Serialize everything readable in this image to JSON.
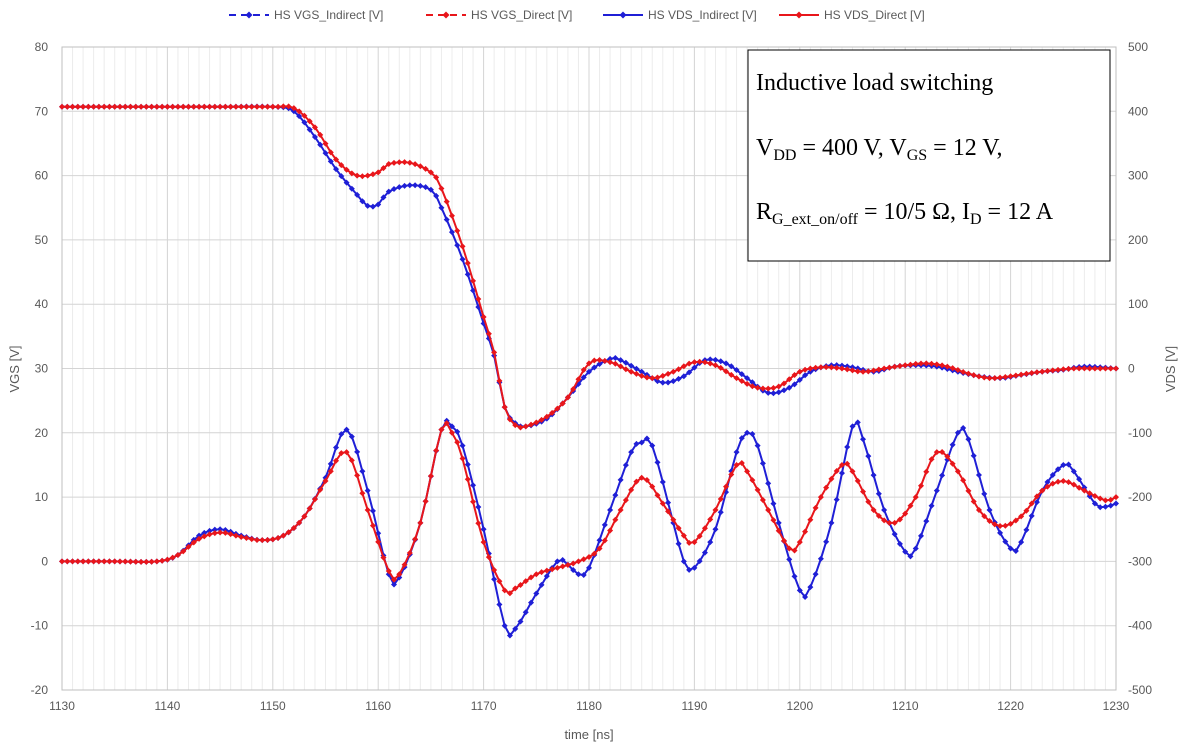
{
  "chart_data": {
    "type": "line",
    "xlabel": "time [ns]",
    "ylabel_left": "VGS [V]",
    "ylabel_right": "VDS [V]",
    "xlim": [
      1130,
      1230
    ],
    "ylim_left": [
      -20,
      80
    ],
    "ylim_right": [
      -500,
      500
    ],
    "x_ticks": [
      1130,
      1140,
      1150,
      1160,
      1170,
      1180,
      1190,
      1200,
      1210,
      1220,
      1230
    ],
    "y_left_ticks": [
      -20,
      -10,
      0,
      10,
      20,
      30,
      40,
      50,
      60,
      70,
      80
    ],
    "y_right_ticks": [
      -500,
      -400,
      -300,
      -200,
      -100,
      0,
      100,
      200,
      300,
      400,
      500
    ],
    "grid": true,
    "legend_position": "top",
    "series": [
      {
        "name": "HS VGS_Indirect [V]",
        "axis": "left",
        "style": "dashed",
        "color": "#1f1fd6",
        "points": [
          [
            1130,
            0
          ],
          [
            1135,
            0
          ],
          [
            1139,
            0
          ],
          [
            1141,
            1
          ],
          [
            1143,
            4
          ],
          [
            1145,
            5
          ],
          [
            1147,
            4
          ],
          [
            1149,
            3.3
          ],
          [
            1151,
            4
          ],
          [
            1153,
            7
          ],
          [
            1155,
            13
          ],
          [
            1157,
            20.5
          ],
          [
            1159,
            11
          ],
          [
            1161,
            -2
          ],
          [
            1162,
            -2.5
          ],
          [
            1164,
            6
          ],
          [
            1166,
            20.5
          ],
          [
            1167,
            21
          ],
          [
            1168,
            18
          ],
          [
            1170,
            5
          ],
          [
            1172,
            -10
          ],
          [
            1173,
            -10.5
          ],
          [
            1175,
            -5
          ],
          [
            1177,
            0
          ],
          [
            1178,
            -0.5
          ],
          [
            1179,
            -2
          ],
          [
            1180,
            -1
          ],
          [
            1182,
            8
          ],
          [
            1184,
            17
          ],
          [
            1185,
            18.5
          ],
          [
            1186,
            18
          ],
          [
            1188,
            6
          ],
          [
            1189,
            0
          ],
          [
            1190,
            -1
          ],
          [
            1192,
            5
          ],
          [
            1194,
            17
          ],
          [
            1195,
            20
          ],
          [
            1196,
            18
          ],
          [
            1198,
            6
          ],
          [
            1200,
            -4.5
          ],
          [
            1201,
            -4
          ],
          [
            1203,
            6
          ],
          [
            1205,
            21
          ],
          [
            1206,
            19
          ],
          [
            1208,
            8
          ],
          [
            1210,
            1.5
          ],
          [
            1211,
            2
          ],
          [
            1213,
            11
          ],
          [
            1215,
            20
          ],
          [
            1216,
            19
          ],
          [
            1218,
            8
          ],
          [
            1220,
            2
          ],
          [
            1221,
            3
          ],
          [
            1223,
            11
          ],
          [
            1225,
            15
          ],
          [
            1226,
            14
          ],
          [
            1228,
            9
          ],
          [
            1229,
            8.5
          ],
          [
            1230,
            9
          ]
        ]
      },
      {
        "name": "HS VGS_Direct [V]",
        "axis": "left",
        "style": "dashed",
        "color": "#e8161b",
        "points": [
          [
            1130,
            0
          ],
          [
            1135,
            0
          ],
          [
            1139,
            0
          ],
          [
            1141,
            1
          ],
          [
            1143,
            3.5
          ],
          [
            1145,
            4.5
          ],
          [
            1147,
            3.8
          ],
          [
            1149,
            3.3
          ],
          [
            1151,
            4
          ],
          [
            1153,
            7
          ],
          [
            1155,
            12.5
          ],
          [
            1157,
            17
          ],
          [
            1159,
            8
          ],
          [
            1161,
            -1.5
          ],
          [
            1162,
            -2
          ],
          [
            1164,
            6
          ],
          [
            1166,
            20.5
          ],
          [
            1167,
            20
          ],
          [
            1168,
            16
          ],
          [
            1170,
            3
          ],
          [
            1172,
            -4.5
          ],
          [
            1173,
            -4.2
          ],
          [
            1175,
            -2
          ],
          [
            1177,
            -1
          ],
          [
            1179,
            0
          ],
          [
            1181,
            2
          ],
          [
            1183,
            8
          ],
          [
            1185,
            13
          ],
          [
            1187,
            9
          ],
          [
            1189,
            4
          ],
          [
            1190,
            3
          ],
          [
            1192,
            8
          ],
          [
            1194,
            15
          ],
          [
            1195,
            14
          ],
          [
            1197,
            8
          ],
          [
            1199,
            2
          ],
          [
            1200,
            3
          ],
          [
            1202,
            10
          ],
          [
            1204,
            15
          ],
          [
            1205,
            14
          ],
          [
            1207,
            8
          ],
          [
            1209,
            6
          ],
          [
            1211,
            10
          ],
          [
            1213,
            17
          ],
          [
            1215,
            14
          ],
          [
            1217,
            8
          ],
          [
            1219,
            5.5
          ],
          [
            1221,
            7
          ],
          [
            1223,
            11
          ],
          [
            1225,
            12.5
          ],
          [
            1227,
            11
          ],
          [
            1229,
            9.5
          ],
          [
            1230,
            10
          ]
        ]
      },
      {
        "name": "HS VDS_Indirect [V]",
        "axis": "right",
        "style": "solid",
        "color": "#1f1fd6",
        "points": [
          [
            1130,
            407
          ],
          [
            1135,
            407
          ],
          [
            1140,
            407
          ],
          [
            1145,
            407
          ],
          [
            1150,
            407
          ],
          [
            1152,
            400
          ],
          [
            1154,
            360
          ],
          [
            1156,
            310
          ],
          [
            1158,
            270
          ],
          [
            1159,
            253
          ],
          [
            1160,
            255
          ],
          [
            1161,
            275
          ],
          [
            1163,
            285
          ],
          [
            1165,
            278
          ],
          [
            1166,
            250
          ],
          [
            1168,
            170
          ],
          [
            1170,
            70
          ],
          [
            1171,
            20
          ],
          [
            1172,
            -60
          ],
          [
            1173,
            -85
          ],
          [
            1174,
            -90
          ],
          [
            1176,
            -78
          ],
          [
            1178,
            -45
          ],
          [
            1180,
            -5
          ],
          [
            1182,
            15
          ],
          [
            1183,
            13
          ],
          [
            1185,
            -5
          ],
          [
            1187,
            -22
          ],
          [
            1189,
            -12
          ],
          [
            1191,
            13
          ],
          [
            1193,
            8
          ],
          [
            1195,
            -15
          ],
          [
            1197,
            -38
          ],
          [
            1199,
            -30
          ],
          [
            1201,
            -5
          ],
          [
            1203,
            5
          ],
          [
            1205,
            2
          ],
          [
            1207,
            -5
          ],
          [
            1209,
            3
          ],
          [
            1211,
            5
          ],
          [
            1213,
            3
          ],
          [
            1215,
            -5
          ],
          [
            1217,
            -12
          ],
          [
            1219,
            -15
          ],
          [
            1221,
            -10
          ],
          [
            1223,
            -5
          ],
          [
            1225,
            -2
          ],
          [
            1227,
            3
          ],
          [
            1230,
            0
          ]
        ]
      },
      {
        "name": "HS VDS_Direct [V]",
        "axis": "right",
        "style": "solid",
        "color": "#e8161b",
        "points": [
          [
            1130,
            407
          ],
          [
            1135,
            407
          ],
          [
            1140,
            407
          ],
          [
            1145,
            407
          ],
          [
            1150,
            407
          ],
          [
            1152,
            405
          ],
          [
            1154,
            375
          ],
          [
            1156,
            325
          ],
          [
            1158,
            300
          ],
          [
            1160,
            305
          ],
          [
            1161,
            318
          ],
          [
            1163,
            320
          ],
          [
            1165,
            305
          ],
          [
            1166,
            280
          ],
          [
            1168,
            190
          ],
          [
            1170,
            80
          ],
          [
            1171,
            25
          ],
          [
            1172,
            -60
          ],
          [
            1173,
            -88
          ],
          [
            1174,
            -90
          ],
          [
            1176,
            -75
          ],
          [
            1178,
            -45
          ],
          [
            1180,
            8
          ],
          [
            1182,
            10
          ],
          [
            1184,
            -5
          ],
          [
            1186,
            -15
          ],
          [
            1188,
            -5
          ],
          [
            1190,
            10
          ],
          [
            1192,
            5
          ],
          [
            1194,
            -15
          ],
          [
            1196,
            -30
          ],
          [
            1198,
            -28
          ],
          [
            1200,
            -5
          ],
          [
            1202,
            2
          ],
          [
            1204,
            0
          ],
          [
            1206,
            -5
          ],
          [
            1208,
            0
          ],
          [
            1210,
            5
          ],
          [
            1212,
            8
          ],
          [
            1214,
            3
          ],
          [
            1216,
            -8
          ],
          [
            1218,
            -15
          ],
          [
            1220,
            -12
          ],
          [
            1222,
            -7
          ],
          [
            1224,
            -3
          ],
          [
            1226,
            0
          ],
          [
            1228,
            0
          ],
          [
            1230,
            0
          ]
        ]
      }
    ],
    "annotation": {
      "line1": "Inductive load switching",
      "line2": {
        "a_main": "V",
        "a_sub": "DD",
        "a_value": " = 400 V, ",
        "b_main": "V",
        "b_sub": "GS",
        "b_value": " = 12 V,"
      },
      "line3": {
        "a_main": "R",
        "a_sub": "G_ext_on/off",
        "a_value": " = 10/5 Ω, ",
        "b_main": "I",
        "b_sub": "D",
        "b_value": " = 12 A"
      }
    }
  }
}
